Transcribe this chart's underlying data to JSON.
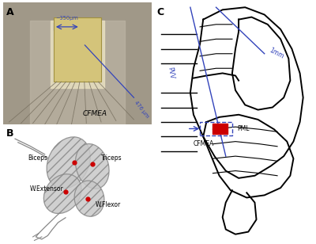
{
  "panel_A_label": "A",
  "panel_B_label": "B",
  "panel_C_label": "C",
  "panel_A_text": "CFMEA",
  "panel_A_measure1": "~350μm",
  "panel_A_measure2": "476 μm",
  "panel_B_labels": [
    "Biceps",
    "Triceps",
    "W.Extensor",
    "W.Flexor"
  ],
  "panel_C_label_PVV": "PVV",
  "panel_C_label_1mm": "1mm",
  "panel_C_label_CFMEA": "CFMEA",
  "panel_C_label_PML": "PML",
  "bg_color": "#ffffff",
  "line_color": "#000000",
  "blue_color": "#3344bb",
  "red_color": "#cc0000",
  "photo_bg": "#a09888",
  "photo_body": "#c8b880",
  "gray_line": "#888888"
}
